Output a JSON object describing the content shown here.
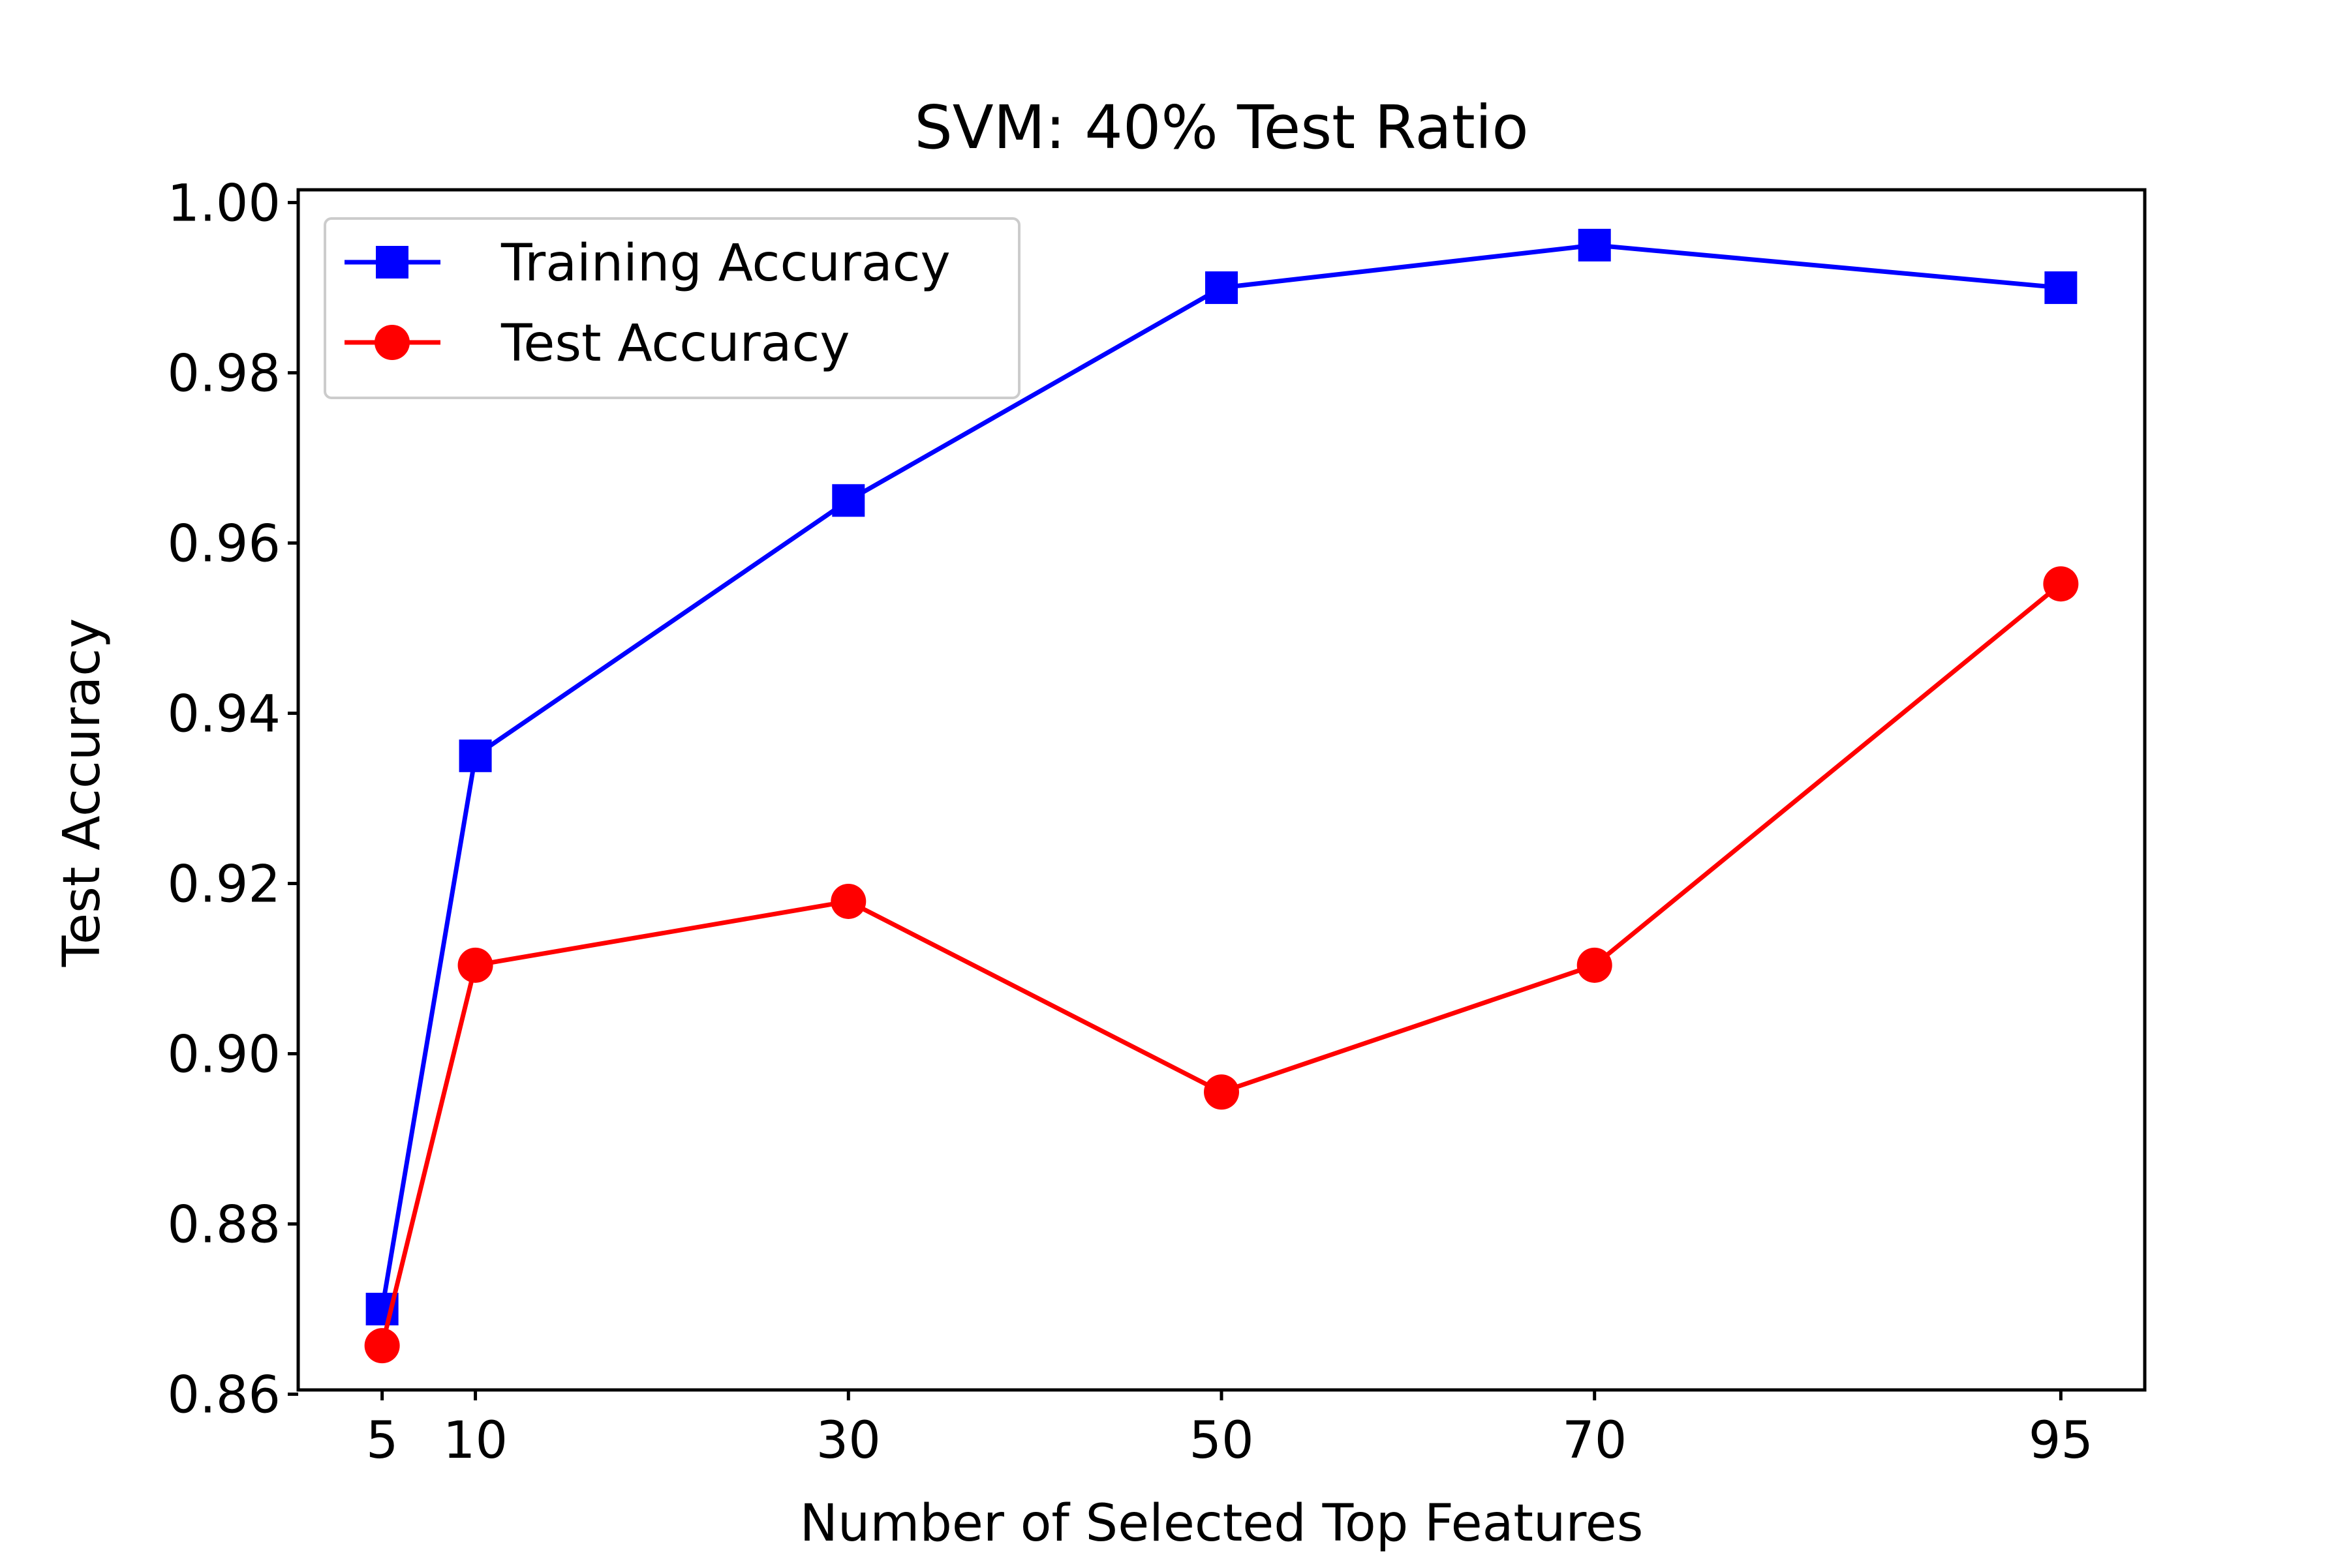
{
  "chart_data": {
    "type": "line",
    "title": "SVM: 40% Test Ratio",
    "xlabel": "Number of Selected Top Features",
    "ylabel": "Test Accuracy",
    "x": [
      5,
      10,
      30,
      50,
      70,
      95
    ],
    "xticks": [
      5,
      10,
      30,
      50,
      70,
      95
    ],
    "xlim": [
      0.5,
      99.5
    ],
    "ylim": [
      0.8605,
      1.0015
    ],
    "yticks": [
      0.86,
      0.88,
      0.9,
      0.92,
      0.94,
      0.96,
      0.98,
      1.0
    ],
    "ytick_labels": [
      "0.86",
      "0.88",
      "0.90",
      "0.92",
      "0.94",
      "0.96",
      "0.98",
      "1.00"
    ],
    "grid": false,
    "legend_position": "top-left",
    "series": [
      {
        "name": "Training Accuracy",
        "color": "#0000ff",
        "marker": "square",
        "values": [
          0.87,
          0.935,
          0.965,
          0.99,
          0.995,
          0.99
        ]
      },
      {
        "name": "Test Accuracy",
        "color": "#ff0000",
        "marker": "circle",
        "values": [
          0.8657,
          0.9104,
          0.9179,
          0.8955,
          0.9104,
          0.9552
        ]
      }
    ]
  }
}
